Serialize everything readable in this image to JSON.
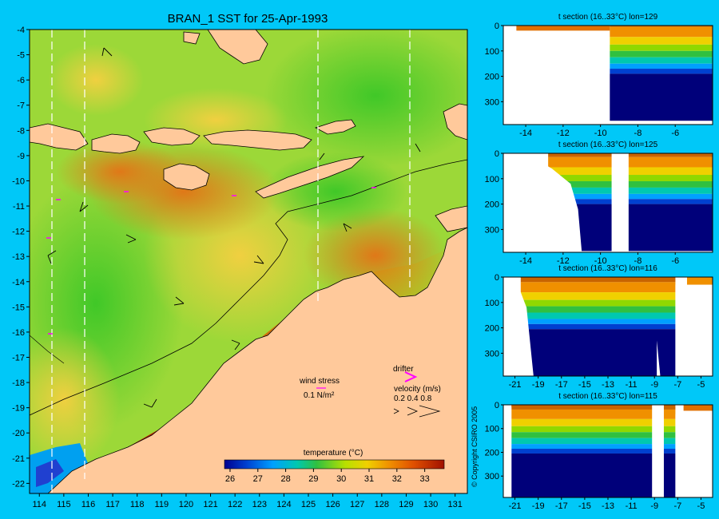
{
  "main_title": "BRAN_1 SST for 25-Apr-1993",
  "copyright": "© Copyright CSIRO 2005",
  "legend": {
    "wind_stress_label": "wind stress",
    "wind_stress_scale": "0.1 N/m²",
    "drifter_label": "drifter",
    "velocity_label": "velocity (m/s)",
    "velocity_values": "0.2 0.4 0.8",
    "temperature_label": "temperature (°C)"
  },
  "colors": {
    "background": "#00c8f8",
    "land": "#ffc99b",
    "drifter": "#ff00ff",
    "deep_water": "#00007a"
  },
  "chart_data": [
    {
      "type": "heatmap",
      "title": "BRAN_1 SST for 25-Apr-1993",
      "x_ticks": [
        114,
        115,
        116,
        117,
        118,
        119,
        120,
        121,
        122,
        123,
        124,
        125,
        126,
        127,
        128,
        129,
        130,
        131
      ],
      "y_ticks": [
        -4,
        -5,
        -6,
        -7,
        -8,
        -9,
        -10,
        -11,
        -12,
        -13,
        -14,
        -15,
        -16,
        -17,
        -18,
        -19,
        -20,
        -21,
        -22
      ],
      "xlim": [
        113.6,
        131.5
      ],
      "ylim": [
        -22.4,
        -4
      ],
      "section_lines_lon": [
        114.6,
        115.8,
        125.4,
        129.3
      ],
      "colorbar": {
        "label": "temperature (°C)",
        "ticks": [
          26,
          27,
          28,
          29,
          30,
          31,
          32,
          33
        ],
        "range": [
          25.8,
          33.7
        ]
      },
      "legend": [
        "wind stress",
        "drifter",
        "velocity (m/s)"
      ]
    },
    {
      "type": "heatmap",
      "title": "t section (16..33°C) lon=129",
      "x_ticks": [
        "-14",
        "-12",
        "-10",
        "-8",
        "-6"
      ],
      "y_ticks": [
        "0",
        "100",
        "200",
        "300"
      ],
      "xlim": [
        -15.2,
        -4
      ],
      "ylim": [
        0,
        390
      ],
      "profile": [
        [
          -9.7,
          390
        ],
        [
          -9.7,
          150
        ],
        [
          -9.3,
          90
        ],
        [
          -8.8,
          75
        ],
        [
          -4,
          75
        ]
      ]
    },
    {
      "type": "heatmap",
      "title": "t section (16..33°C) lon=125",
      "x_ticks": [
        "-14",
        "-12",
        "-10",
        "-8",
        "-6"
      ],
      "y_ticks": [
        "0",
        "100",
        "200",
        "300"
      ],
      "xlim": [
        -15.2,
        -4
      ],
      "ylim": [
        0,
        390
      ],
      "profile": [
        [
          -12.6,
          0
        ],
        [
          -12,
          70
        ],
        [
          -11.3,
          120
        ],
        [
          -11,
          220
        ],
        [
          -11,
          390
        ]
      ]
    },
    {
      "type": "heatmap",
      "title": "t section (16..33°C) lon=116",
      "x_ticks": [
        "-21",
        "-19",
        "-17",
        "-15",
        "-13",
        "-11",
        "-9",
        "-7",
        "-5"
      ],
      "y_ticks": [
        "0",
        "100",
        "200",
        "300"
      ],
      "xlim": [
        -22,
        -4
      ],
      "ylim": [
        0,
        390
      ]
    },
    {
      "type": "heatmap",
      "title": "t section (16..33°C) lon=115",
      "x_ticks": [
        "-21",
        "-19",
        "-17",
        "-15",
        "-13",
        "-11",
        "-9",
        "-7",
        "-5"
      ],
      "y_ticks": [
        "0",
        "100",
        "200",
        "300"
      ],
      "xlim": [
        -22,
        -4
      ],
      "ylim": [
        0,
        390
      ]
    }
  ]
}
